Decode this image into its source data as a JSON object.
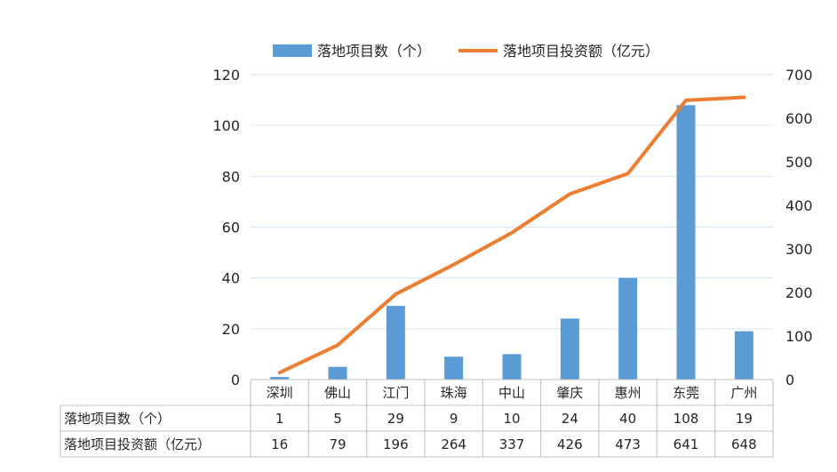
{
  "chart_data": {
    "type": "bar",
    "categories": [
      "深圳",
      "佛山",
      "江门",
      "珠海",
      "中山",
      "肇庆",
      "惠州",
      "东莞",
      "广州"
    ],
    "series": [
      {
        "name": "落地项目数（个）",
        "kind": "bar",
        "axis": "left",
        "color": "#5B9BD5",
        "values": [
          1,
          5,
          29,
          9,
          10,
          24,
          40,
          108,
          19
        ]
      },
      {
        "name": "落地项目投资额（亿元）",
        "kind": "line",
        "axis": "right",
        "color": "#ED7D31",
        "values": [
          16,
          79,
          196,
          264,
          337,
          426,
          473,
          641,
          648
        ]
      }
    ],
    "y_left": {
      "min": 0,
      "max": 120,
      "ticks": [
        0,
        20,
        40,
        60,
        80,
        100,
        120
      ]
    },
    "y_right": {
      "min": 0,
      "max": 700,
      "ticks": [
        0,
        100,
        200,
        300,
        400,
        500,
        600,
        700
      ]
    },
    "grid": true,
    "legend_position": "top",
    "data_table": {
      "row_labels": [
        "落地项目数（个）",
        "落地项目投资额（亿元）"
      ],
      "rows": [
        [
          "1",
          "5",
          "29",
          "9",
          "10",
          "24",
          "40",
          "108",
          "19"
        ],
        [
          "16",
          "79",
          "196",
          "264",
          "337",
          "426",
          "473",
          "641",
          "648"
        ]
      ]
    }
  }
}
